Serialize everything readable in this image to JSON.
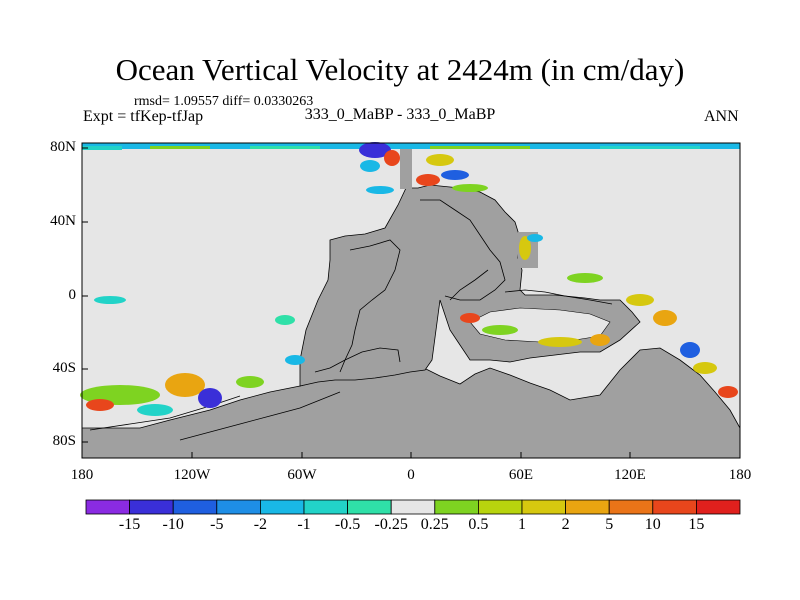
{
  "title": "Ocean Vertical Velocity at 2424m (in cm/day)",
  "stats_line": "rmsd= 1.09557 diff= 0.0330263",
  "experiment_line": "Expt = tfKep-tfJap",
  "case_line": "333_0_MaBP - 333_0_MaBP",
  "season": "ANN",
  "map": {
    "lat_ticks": [
      "80N",
      "40N",
      "0",
      "40S",
      "80S"
    ],
    "lon_ticks": [
      "180",
      "120W",
      "60W",
      "0",
      "60E",
      "120E",
      "180"
    ],
    "colors": {
      "land": "#a0a0a0",
      "near_zero": "#e6e6e6",
      "coast": "#000000"
    }
  },
  "colorbar": {
    "labels": [
      "-15",
      "-10",
      "-5",
      "-2",
      "-1",
      "-0.5",
      "-0.25",
      "0.25",
      "0.5",
      "1",
      "2",
      "5",
      "10",
      "15"
    ],
    "colors": [
      "#8a2be2",
      "#3a2fd8",
      "#1f5fe0",
      "#1e8ee6",
      "#19b8e6",
      "#22d3c8",
      "#2fe0a8",
      "#e6e6e6",
      "#7ed321",
      "#b8d40e",
      "#d6c80f",
      "#e9a511",
      "#ea7418",
      "#e8461c",
      "#e0201d"
    ]
  }
}
